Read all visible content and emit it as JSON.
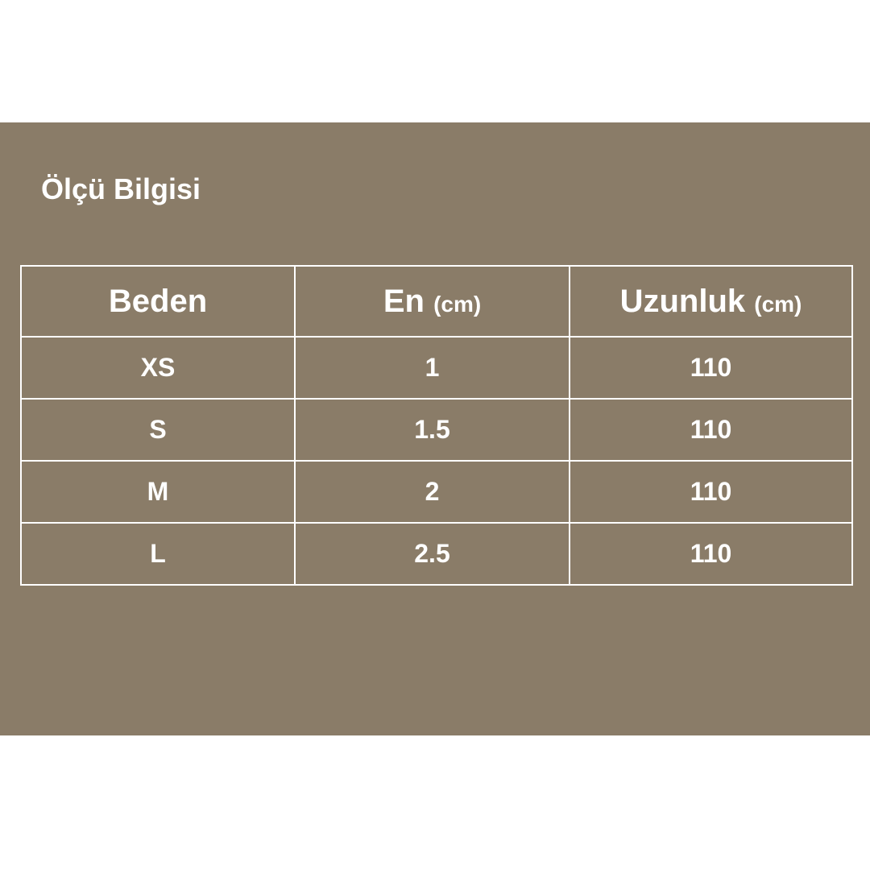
{
  "title": "Ölçü Bilgisi",
  "headers": [
    {
      "label": "Beden",
      "unit": ""
    },
    {
      "label": "En",
      "unit": "(cm)"
    },
    {
      "label": "Uzunluk",
      "unit": "(cm)"
    }
  ],
  "rows": [
    [
      "XS",
      "1",
      "110"
    ],
    [
      "S",
      "1.5",
      "110"
    ],
    [
      "M",
      "2",
      "110"
    ],
    [
      "L",
      "2.5",
      "110"
    ]
  ],
  "colors": {
    "background": "#8a7c68",
    "text": "#ffffff"
  }
}
